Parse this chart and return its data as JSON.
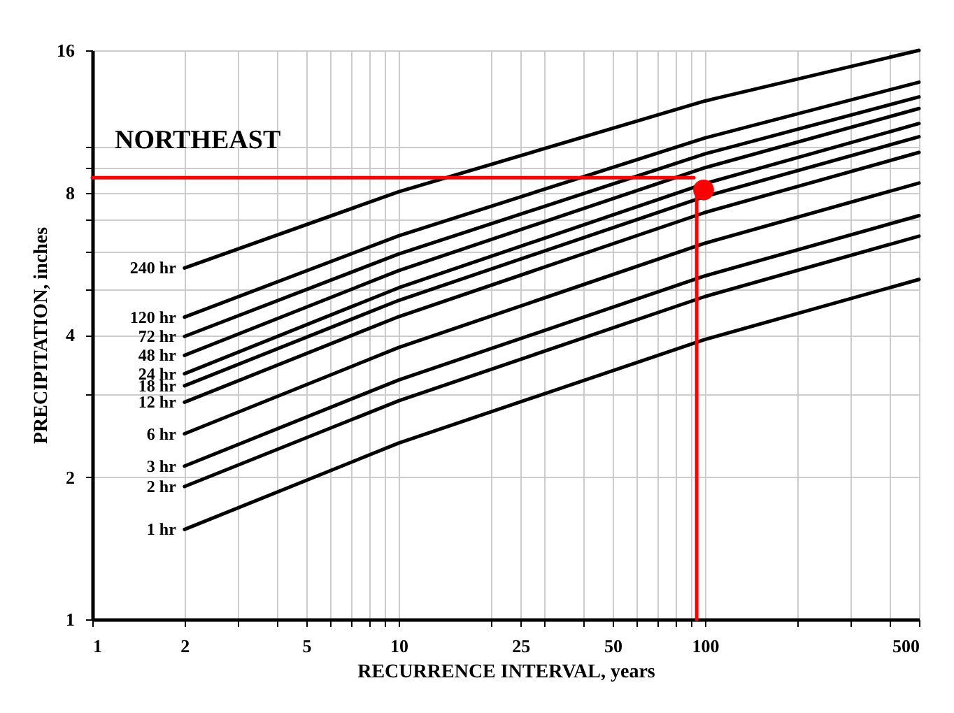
{
  "chart_data": {
    "type": "line",
    "title": "NORTHEAST",
    "xlabel": "RECURRENCE INTERVAL, years",
    "ylabel": "PRECIPITATION, inches",
    "log": "xy",
    "grid": true,
    "marker": "none",
    "line_style": "solid",
    "xlim": [
      1,
      500
    ],
    "ylim": [
      1,
      16
    ],
    "xticks": [
      1,
      2,
      {
        "value": 3,
        "label": null
      },
      {
        "value": 4,
        "label": null
      },
      5,
      {
        "value": 6,
        "label": null
      },
      {
        "value": 7,
        "label": null
      },
      {
        "value": 8,
        "label": null
      },
      {
        "value": 9,
        "label": null
      },
      10,
      {
        "value": 20,
        "label": null
      },
      25,
      {
        "value": 30,
        "label": null
      },
      {
        "value": 40,
        "label": null
      },
      50,
      {
        "value": 60,
        "label": null
      },
      {
        "value": 70,
        "label": null
      },
      {
        "value": 80,
        "label": null
      },
      {
        "value": 90,
        "label": null
      },
      100,
      {
        "value": 200,
        "label": null
      },
      {
        "value": 300,
        "label": null
      },
      {
        "value": 400,
        "label": null
      },
      500
    ],
    "yticks": [
      1,
      2,
      {
        "value": 3,
        "label": null
      },
      4,
      {
        "value": 5,
        "label": null
      },
      {
        "value": 6,
        "label": null
      },
      {
        "value": 7,
        "label": null
      },
      8,
      {
        "value": 9,
        "label": null
      },
      {
        "value": 10,
        "label": null
      },
      16
    ],
    "series": [
      {
        "name": "240 hr",
        "color": "#000000",
        "x": [
          2,
          10,
          100,
          500
        ],
        "values": [
          5.54,
          8.03,
          12.5,
          16.0
        ]
      },
      {
        "name": "120 hr",
        "color": "#000000",
        "x": [
          2,
          10,
          100,
          500
        ],
        "values": [
          4.36,
          6.48,
          10.44,
          13.7
        ]
      },
      {
        "name": "72 hr",
        "color": "#000000",
        "x": [
          2,
          10,
          100,
          500
        ],
        "values": [
          3.97,
          5.93,
          9.66,
          12.75
        ]
      },
      {
        "name": "48 hr",
        "color": "#000000",
        "x": [
          2,
          10,
          100,
          500
        ],
        "values": [
          3.62,
          5.47,
          9.03,
          12.05
        ]
      },
      {
        "name": "24 hr",
        "color": "#000000",
        "x": [
          2,
          10,
          100,
          500
        ],
        "values": [
          3.31,
          5.03,
          8.36,
          11.2
        ]
      },
      {
        "name": "18 hr",
        "color": "#000000",
        "x": [
          2,
          10,
          100,
          500
        ],
        "values": [
          3.12,
          4.73,
          7.85,
          10.5
        ]
      },
      {
        "name": "12 hr",
        "color": "#000000",
        "x": [
          2,
          10,
          100,
          500
        ],
        "values": [
          2.88,
          4.37,
          7.26,
          9.73
        ]
      },
      {
        "name": "6 hr",
        "color": "#000000",
        "x": [
          2,
          10,
          100,
          500
        ],
        "values": [
          2.47,
          3.76,
          6.25,
          8.38
        ]
      },
      {
        "name": "3 hr",
        "color": "#000000",
        "x": [
          2,
          10,
          100,
          500
        ],
        "values": [
          2.11,
          3.21,
          5.33,
          7.15
        ]
      },
      {
        "name": "2 hr",
        "color": "#000000",
        "x": [
          2,
          10,
          100,
          500
        ],
        "values": [
          1.91,
          2.9,
          4.82,
          6.47
        ]
      },
      {
        "name": "1 hr",
        "color": "#000000",
        "x": [
          2,
          10,
          100,
          500
        ],
        "values": [
          1.55,
          2.36,
          3.91,
          5.24
        ]
      },
      {
        "color": "#ff0000",
        "x": [
          1,
          92
        ],
        "values": [
          8.6,
          8.6
        ]
      },
      {
        "color": "#ff0000",
        "x": [
          94,
          94
        ],
        "values": [
          1,
          8.3
        ]
      },
      {
        "type": "scatter",
        "marker": "circle",
        "color": "#ff0000",
        "x": [
          99
        ],
        "values": [
          8.1
        ]
      }
    ]
  }
}
